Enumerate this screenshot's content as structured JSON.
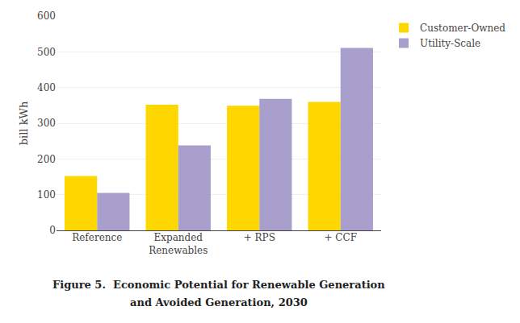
{
  "chart_data": {
    "type": "bar",
    "categories": [
      "Reference",
      "Expanded\nRenewables",
      "+ RPS",
      "+ CCF"
    ],
    "series": [
      {
        "name": "Customer-Owned",
        "color": "#FFD700",
        "values": [
          152,
          352,
          349,
          360
        ]
      },
      {
        "name": "Utility-Scale",
        "color": "#A99FCC",
        "values": [
          105,
          238,
          368,
          511
        ]
      }
    ],
    "ylabel": "bill kWh",
    "ylim": [
      0,
      600
    ],
    "yticks": [
      0,
      100,
      200,
      300,
      400,
      500,
      600
    ],
    "grid": true,
    "legend": "right",
    "annotations": [
      "Figure 5.  Economic Potential for Renewable Generation",
      "and Avoided Generation, 2030"
    ]
  }
}
